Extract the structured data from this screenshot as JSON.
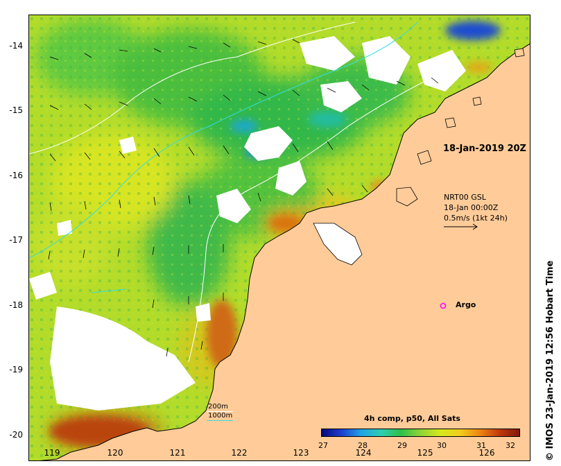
{
  "map": {
    "valid_time": "18-Jan-2019 20Z",
    "current_source": "NRT00 GSL",
    "current_time": "18-Jan 00:00Z",
    "current_scale": "0.5m/s (1kt 24h)",
    "argo_label": "Argo",
    "depth_200": "200m",
    "depth_1000": "1000m",
    "credit": "© IMOS 23-Jan-2019 12:56 Hobart Time",
    "colors": {
      "land": "#ffcc99",
      "no_data": "#ffffff",
      "isobath_200": "#ffffff",
      "isobath_1000": "#33dddd",
      "argo_marker": "#ff00ff"
    }
  },
  "axes": {
    "x_ticks": [
      "119",
      "120",
      "121",
      "122",
      "123",
      "124",
      "125",
      "126"
    ],
    "y_ticks": [
      "-14",
      "-15",
      "-16",
      "-17",
      "-18",
      "-19",
      "-20"
    ]
  },
  "colorbar": {
    "title": "4h comp, p50, All Sats",
    "ticks": [
      "27",
      "28",
      "29",
      "30",
      "31",
      "32"
    ]
  }
}
